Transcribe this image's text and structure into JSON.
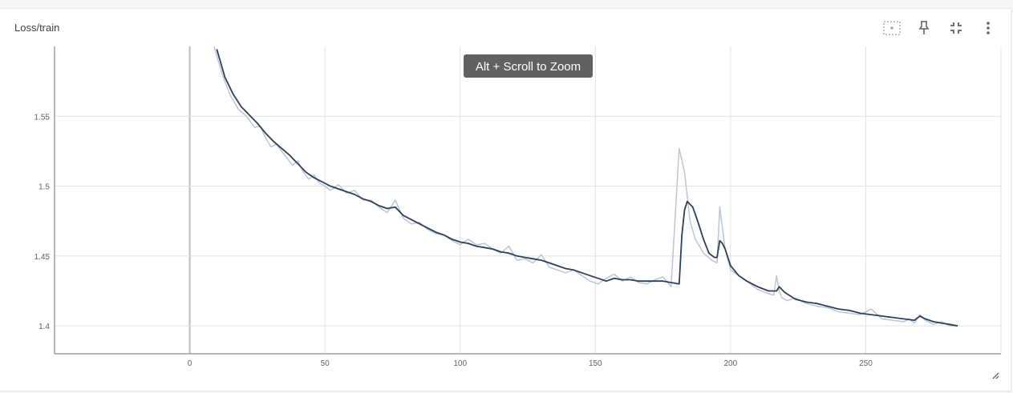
{
  "card": {
    "title": "Loss/train",
    "zoom_hint": "Alt + Scroll to Zoom",
    "toolbar": [
      {
        "name": "fit-domain-icon"
      },
      {
        "name": "pin-icon"
      },
      {
        "name": "collapse-icon"
      },
      {
        "name": "more-vert-icon"
      }
    ]
  },
  "chart_data": {
    "type": "line",
    "title": "Loss/train",
    "xlabel": "",
    "ylabel": "",
    "xlim": [
      -50,
      300
    ],
    "ylim": [
      1.38,
      1.6
    ],
    "x_ticks": [
      0,
      50,
      100,
      150,
      200,
      250
    ],
    "y_ticks": [
      1.4,
      1.45,
      1.5,
      1.55
    ],
    "x_tick_labels": [
      "0",
      "50",
      "100",
      "150",
      "200",
      "250"
    ],
    "y_tick_labels": [
      "1.4",
      "1.45",
      "1.5",
      "1.55"
    ],
    "grid": true,
    "colors": {
      "smoothed": "#2e3f57",
      "raw": "#b9c6d6",
      "grid": "#e2e2e2",
      "axis": "#9e9e9e"
    },
    "series": [
      {
        "role": "raw",
        "x": [
          9,
          12,
          15,
          18,
          21,
          24,
          26,
          28,
          30,
          32,
          34,
          36,
          38,
          40,
          42,
          44,
          46,
          48,
          50,
          52,
          55,
          58,
          61,
          64,
          67,
          70,
          73,
          76,
          79,
          82,
          85,
          88,
          91,
          94,
          97,
          100,
          103,
          106,
          109,
          112,
          115,
          118,
          121,
          124,
          127,
          130,
          133,
          136,
          139,
          142,
          145,
          148,
          151,
          154,
          157,
          160,
          163,
          166,
          169,
          172,
          175,
          178,
          181,
          183,
          185,
          187,
          190,
          193,
          195,
          196,
          198,
          200,
          203,
          206,
          210,
          214,
          216,
          217,
          218,
          219,
          221,
          224,
          228,
          232,
          236,
          240,
          244,
          248,
          252,
          256,
          260,
          264,
          266,
          268,
          270,
          272,
          275,
          278,
          281,
          284
        ],
        "y": [
          1.6,
          1.58,
          1.565,
          1.555,
          1.55,
          1.542,
          1.543,
          1.535,
          1.528,
          1.53,
          1.525,
          1.52,
          1.515,
          1.518,
          1.51,
          1.505,
          1.508,
          1.502,
          1.5,
          1.497,
          1.501,
          1.495,
          1.497,
          1.49,
          1.49,
          1.485,
          1.481,
          1.49,
          1.477,
          1.473,
          1.474,
          1.469,
          1.466,
          1.465,
          1.461,
          1.458,
          1.462,
          1.458,
          1.459,
          1.455,
          1.452,
          1.457,
          1.447,
          1.448,
          1.445,
          1.451,
          1.442,
          1.44,
          1.438,
          1.44,
          1.436,
          1.432,
          1.43,
          1.434,
          1.437,
          1.432,
          1.435,
          1.431,
          1.43,
          1.433,
          1.435,
          1.428,
          1.527,
          1.51,
          1.475,
          1.462,
          1.452,
          1.447,
          1.445,
          1.485,
          1.455,
          1.44,
          1.436,
          1.432,
          1.426,
          1.423,
          1.422,
          1.436,
          1.425,
          1.42,
          1.418,
          1.42,
          1.416,
          1.414,
          1.413,
          1.41,
          1.409,
          1.408,
          1.412,
          1.405,
          1.404,
          1.403,
          1.405,
          1.402,
          1.408,
          1.404,
          1.401,
          1.403,
          1.4,
          1.4
        ]
      },
      {
        "role": "smoothed",
        "x": [
          10,
          13,
          16,
          19,
          22,
          25,
          28,
          31,
          34,
          37,
          40,
          43,
          46,
          49,
          52,
          55,
          58,
          61,
          64,
          67,
          70,
          73,
          76,
          79,
          82,
          85,
          88,
          91,
          94,
          97,
          100,
          103,
          106,
          109,
          112,
          115,
          118,
          121,
          124,
          127,
          130,
          133,
          136,
          139,
          142,
          145,
          148,
          151,
          154,
          157,
          160,
          163,
          166,
          169,
          172,
          175,
          178,
          181,
          182,
          183,
          184,
          186,
          188,
          190,
          192,
          194,
          195,
          196,
          197,
          198,
          200,
          203,
          206,
          210,
          214,
          217,
          218,
          220,
          224,
          228,
          232,
          236,
          240,
          244,
          248,
          252,
          256,
          260,
          264,
          268,
          270,
          272,
          275,
          278,
          281,
          284
        ],
        "y": [
          1.598,
          1.578,
          1.566,
          1.557,
          1.551,
          1.545,
          1.538,
          1.532,
          1.527,
          1.522,
          1.516,
          1.51,
          1.506,
          1.503,
          1.5,
          1.498,
          1.496,
          1.494,
          1.491,
          1.489,
          1.486,
          1.484,
          1.485,
          1.479,
          1.476,
          1.473,
          1.47,
          1.467,
          1.465,
          1.462,
          1.46,
          1.459,
          1.457,
          1.456,
          1.455,
          1.453,
          1.452,
          1.45,
          1.449,
          1.448,
          1.447,
          1.445,
          1.443,
          1.441,
          1.44,
          1.438,
          1.436,
          1.434,
          1.432,
          1.434,
          1.433,
          1.433,
          1.432,
          1.432,
          1.432,
          1.432,
          1.431,
          1.43,
          1.465,
          1.483,
          1.489,
          1.485,
          1.474,
          1.462,
          1.452,
          1.449,
          1.449,
          1.461,
          1.459,
          1.455,
          1.443,
          1.436,
          1.432,
          1.428,
          1.425,
          1.425,
          1.428,
          1.424,
          1.419,
          1.417,
          1.416,
          1.414,
          1.412,
          1.411,
          1.409,
          1.408,
          1.407,
          1.406,
          1.405,
          1.404,
          1.407,
          1.405,
          1.403,
          1.402,
          1.401,
          1.4
        ]
      }
    ]
  }
}
